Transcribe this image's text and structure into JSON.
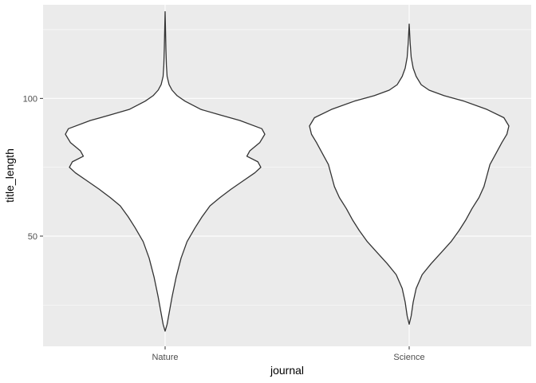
{
  "chart_data": {
    "type": "violin",
    "xlabel": "journal",
    "ylabel": "title_length",
    "categories": [
      "Nature",
      "Science"
    ],
    "ylim": [
      10,
      134
    ],
    "y_ticks": [
      50,
      100
    ],
    "y_minor_ticks": [
      25,
      75,
      125
    ],
    "grid": true,
    "colors": {
      "panel": "#ebebeb",
      "grid": "#ffffff",
      "violin_fill": "#ffffff",
      "violin_stroke": "#333333",
      "tick": "#333333"
    },
    "series": [
      {
        "category": "Nature",
        "min": 15.5,
        "max": 131.5,
        "density_profile": [
          [
            15.5,
            0.0
          ],
          [
            18,
            0.02
          ],
          [
            22,
            0.04
          ],
          [
            28,
            0.07
          ],
          [
            35,
            0.11
          ],
          [
            42,
            0.16
          ],
          [
            48,
            0.22
          ],
          [
            53,
            0.3
          ],
          [
            57,
            0.37
          ],
          [
            61,
            0.45
          ],
          [
            64,
            0.55
          ],
          [
            67,
            0.66
          ],
          [
            70,
            0.78
          ],
          [
            73,
            0.9
          ],
          [
            75,
            0.96
          ],
          [
            77,
            0.93
          ],
          [
            79,
            0.82
          ],
          [
            81,
            0.85
          ],
          [
            84,
            0.95
          ],
          [
            87,
            1.0
          ],
          [
            89,
            0.97
          ],
          [
            92,
            0.75
          ],
          [
            94,
            0.55
          ],
          [
            96,
            0.36
          ],
          [
            99,
            0.2
          ],
          [
            101,
            0.12
          ],
          [
            103,
            0.07
          ],
          [
            105,
            0.04
          ],
          [
            108,
            0.02
          ],
          [
            112,
            0.013
          ],
          [
            118,
            0.008
          ],
          [
            125,
            0.004
          ],
          [
            131.5,
            0.0
          ]
        ]
      },
      {
        "category": "Science",
        "min": 18,
        "max": 127,
        "density_profile": [
          [
            18,
            0.0
          ],
          [
            21,
            0.02
          ],
          [
            26,
            0.04
          ],
          [
            31,
            0.07
          ],
          [
            36,
            0.13
          ],
          [
            40,
            0.22
          ],
          [
            44,
            0.32
          ],
          [
            48,
            0.42
          ],
          [
            52,
            0.5
          ],
          [
            56,
            0.57
          ],
          [
            60,
            0.63
          ],
          [
            64,
            0.7
          ],
          [
            68,
            0.75
          ],
          [
            72,
            0.78
          ],
          [
            76,
            0.81
          ],
          [
            80,
            0.87
          ],
          [
            84,
            0.93
          ],
          [
            87,
            0.98
          ],
          [
            90,
            1.0
          ],
          [
            93,
            0.95
          ],
          [
            96,
            0.78
          ],
          [
            99,
            0.55
          ],
          [
            101,
            0.35
          ],
          [
            103,
            0.2
          ],
          [
            105,
            0.12
          ],
          [
            108,
            0.07
          ],
          [
            111,
            0.04
          ],
          [
            115,
            0.02
          ],
          [
            120,
            0.01
          ],
          [
            127,
            0.0
          ]
        ]
      }
    ]
  }
}
